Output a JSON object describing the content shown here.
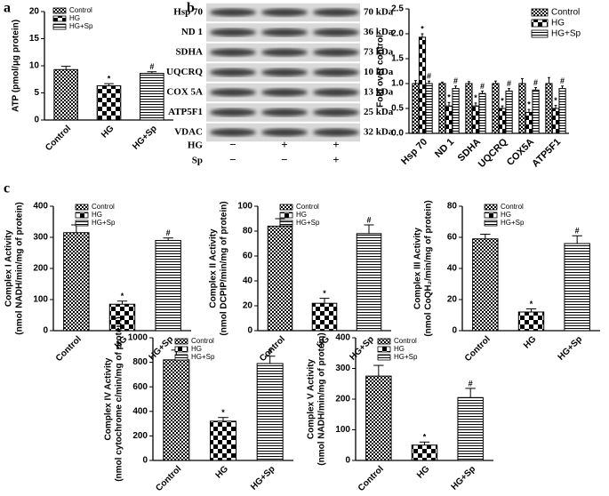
{
  "chart_data": [
    {
      "type": "bar",
      "panel": "a",
      "ylabel": [
        "ATP (pmol/μg protein)"
      ],
      "categories": [
        "Control",
        "HG",
        "HG+Sp"
      ],
      "values": [
        9.3,
        6.3,
        8.6
      ],
      "errors": [
        0.6,
        0.4,
        0.3
      ],
      "annotations": [
        null,
        "*",
        "#"
      ],
      "patterns": [
        "checker-small",
        "checker-large",
        "stripes"
      ],
      "legend": [
        "Control",
        "HG",
        "HG+Sp"
      ],
      "color": "#000000",
      "ylim": [
        0,
        20
      ],
      "yticks": [
        0,
        5,
        10,
        15,
        20
      ]
    },
    {
      "type": "grouped-bar",
      "panel": "b",
      "ylabel": [
        "Fold over control"
      ],
      "categories": [
        "Hsp 70",
        "ND 1",
        "SDHA",
        "UQCRQ",
        "COX5A",
        "ATP5F1"
      ],
      "color": "#000000",
      "series": [
        {
          "name": "Control",
          "pattern": "checker-small",
          "values": [
            1.0,
            1.0,
            1.0,
            1.0,
            1.0,
            1.0
          ],
          "errors": [
            0.06,
            0.03,
            0.04,
            0.05,
            0.1,
            0.12
          ]
        },
        {
          "name": "HG",
          "pattern": "checker-large",
          "values": [
            1.93,
            0.55,
            0.55,
            0.5,
            0.42,
            0.5
          ],
          "errors": [
            0.07,
            0.07,
            0.06,
            0.05,
            0.06,
            0.06
          ],
          "annotations": [
            "*",
            "*",
            "*",
            "*",
            "*",
            "*"
          ]
        },
        {
          "name": "HG+Sp",
          "pattern": "stripes",
          "values": [
            1.0,
            0.9,
            0.8,
            0.85,
            0.87,
            0.9
          ],
          "errors": [
            0.05,
            0.05,
            0.05,
            0.05,
            0.05,
            0.05
          ],
          "annotations": [
            "#",
            "#",
            "#",
            "#",
            "#",
            "#"
          ]
        }
      ],
      "ylim": [
        0,
        2.5
      ],
      "yticks": [
        {
          "value": 0,
          "label": "0.0"
        },
        0.5,
        {
          "value": 1,
          "label": "1.0"
        },
        1.5,
        {
          "value": 2,
          "label": "2.0"
        },
        2.5
      ]
    },
    {
      "type": "bar",
      "panel": "c",
      "ylabel": [
        "Complex I Activity",
        "(nmol NADH/min/mg of protein)"
      ],
      "categories": [
        "Control",
        "HG",
        "HG+Sp"
      ],
      "values": [
        315,
        85,
        290
      ],
      "errors": [
        25,
        10,
        8
      ],
      "annotations": [
        null,
        "*",
        "#"
      ],
      "patterns": [
        "checker-small",
        "checker-large",
        "stripes"
      ],
      "legend": [
        "Control",
        "HG",
        "HG+Sp"
      ],
      "color": "#000000",
      "ylim": [
        0,
        400
      ],
      "yticks": [
        0,
        100,
        200,
        300,
        400
      ]
    },
    {
      "type": "bar",
      "ylabel": [
        "Complex II Activity",
        "(nmol DCPIP/min/mg of protein)"
      ],
      "categories": [
        "Control",
        "HG",
        "HG+Sp"
      ],
      "values": [
        84,
        22,
        78
      ],
      "errors": [
        6,
        4,
        7
      ],
      "annotations": [
        null,
        "*",
        "#"
      ],
      "patterns": [
        "checker-small",
        "checker-large",
        "stripes"
      ],
      "legend": [
        "Control",
        "HG",
        "HG+Sp"
      ],
      "color": "#000000",
      "ylim": [
        0,
        100
      ],
      "yticks": [
        0,
        20,
        40,
        60,
        80,
        100
      ]
    },
    {
      "type": "bar",
      "ylabel": [
        "Complex III Activity",
        "(nmol CoQH₂/min/mg of protein)"
      ],
      "categories": [
        "Control",
        "HG",
        "HG+Sp"
      ],
      "values": [
        59,
        12,
        56
      ],
      "errors": [
        3,
        2,
        5
      ],
      "annotations": [
        null,
        "*",
        "#"
      ],
      "patterns": [
        "checker-small",
        "checker-large",
        "stripes"
      ],
      "legend": [
        "Control",
        "HG",
        "HG+Sp"
      ],
      "color": "#000000",
      "ylim": [
        0,
        80
      ],
      "yticks": [
        0,
        20,
        40,
        60,
        80
      ]
    },
    {
      "type": "bar",
      "ylabel": [
        "Complex IV Activity",
        "(nmol cytochrome c/min/mg of protein)"
      ],
      "categories": [
        "Control",
        "HG",
        "HG+Sp"
      ],
      "values": [
        820,
        320,
        790
      ],
      "errors": [
        80,
        30,
        60
      ],
      "annotations": [
        null,
        "*",
        "#"
      ],
      "patterns": [
        "checker-small",
        "checker-large",
        "stripes"
      ],
      "legend": [
        "Control",
        "HG",
        "HG+Sp"
      ],
      "color": "#000000",
      "ylim": [
        0,
        1000
      ],
      "yticks": [
        0,
        200,
        400,
        600,
        800,
        1000
      ]
    },
    {
      "type": "bar",
      "ylabel": [
        "Complex V Activity",
        "(nmol NADH/min/mg of protein)"
      ],
      "categories": [
        "Control",
        "HG",
        "HG+Sp"
      ],
      "values": [
        275,
        50,
        205
      ],
      "errors": [
        35,
        10,
        30
      ],
      "annotations": [
        null,
        "*",
        "#"
      ],
      "patterns": [
        "checker-small",
        "checker-large",
        "stripes"
      ],
      "legend": [
        "Control",
        "HG",
        "HG+Sp"
      ],
      "color": "#000000",
      "ylim": [
        0,
        400
      ],
      "yticks": [
        0,
        100,
        200,
        300,
        400
      ]
    }
  ],
  "blot": {
    "rows": [
      {
        "protein": "Hsp 70",
        "size": "70 kDa"
      },
      {
        "protein": "ND 1",
        "size": "36 kDa"
      },
      {
        "protein": "SDHA",
        "size": "73 kDa"
      },
      {
        "protein": "UQCRQ",
        "size": "10 kDa"
      },
      {
        "protein": "COX 5A",
        "size": "13 kDa"
      },
      {
        "protein": "ATP5F1",
        "size": "25 kDa"
      },
      {
        "protein": "VDAC",
        "size": "32 kDa"
      }
    ],
    "treatments": [
      {
        "name": "HG",
        "signs": [
          "−",
          "+",
          "+"
        ]
      },
      {
        "name": "Sp",
        "signs": [
          "−",
          "−",
          "+"
        ]
      }
    ]
  }
}
